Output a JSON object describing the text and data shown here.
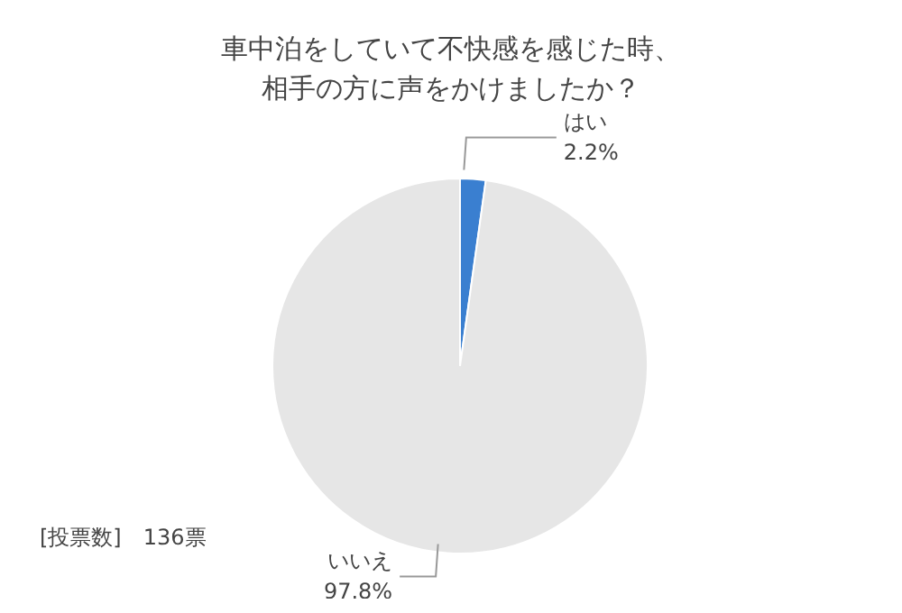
{
  "chart_data": {
    "type": "pie",
    "title": "車中泊をしていて不快感を感じた時、相手の方に声をかけましたか？",
    "categories": [
      "はい",
      "いいえ"
    ],
    "values": [
      2.2,
      97.8
    ],
    "value_labels": [
      "2.2%",
      "97.8%"
    ],
    "colors": [
      "#3a7fd0",
      "#e6e6e6"
    ],
    "annotations": [
      "[投票数]　136票"
    ],
    "legend": false
  }
}
